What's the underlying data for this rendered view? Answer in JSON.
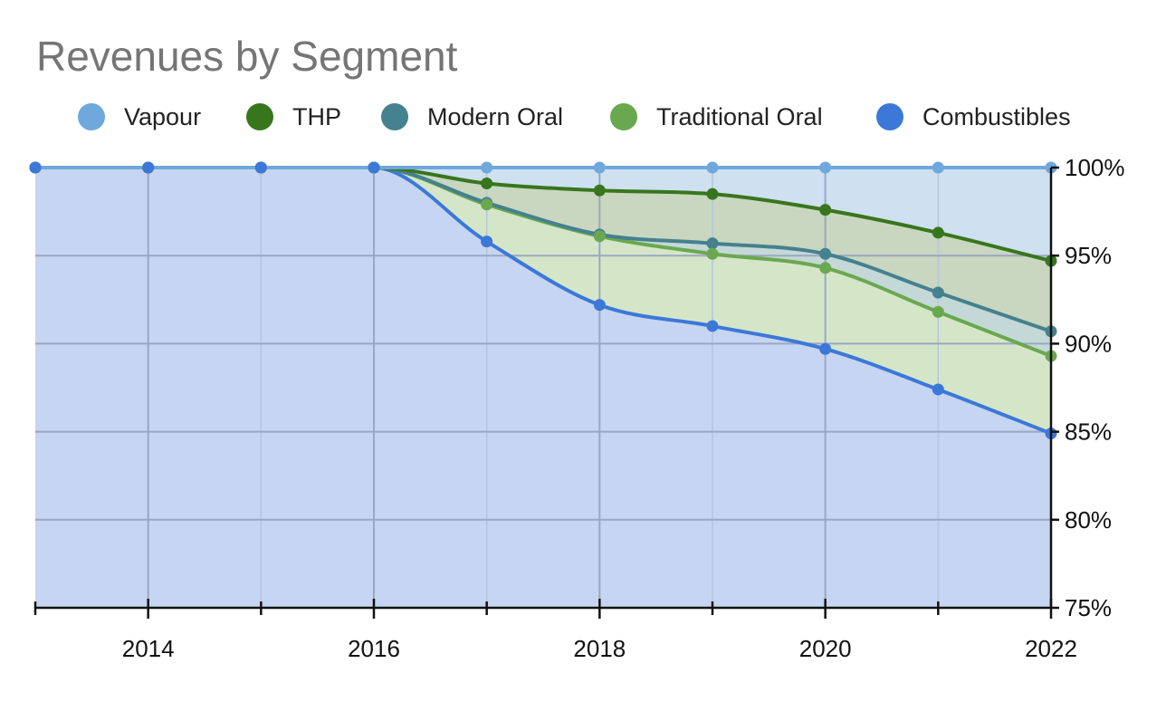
{
  "chart_data": {
    "type": "area",
    "stacked": true,
    "title": "Revenues by Segment",
    "legend_position": "top",
    "x": [
      2013,
      2014,
      2015,
      2016,
      2017,
      2018,
      2019,
      2020,
      2021,
      2022
    ],
    "x_tick_labels": [
      "2014",
      "2016",
      "2018",
      "2020",
      "2022"
    ],
    "x_tick_values": [
      2014,
      2016,
      2018,
      2020,
      2022
    ],
    "y_tick_labels": [
      "100%",
      "95%",
      "90%",
      "85%",
      "80%",
      "75%"
    ],
    "y_tick_values": [
      100,
      95,
      90,
      85,
      80,
      75
    ],
    "ylim": [
      75,
      100
    ],
    "xlim": [
      2013,
      2022
    ],
    "y_axis_side": "right",
    "grid": true,
    "series_note_units": "cumulative share of revenue, percent",
    "series": [
      {
        "name": "Combustibles",
        "color": "#3c78d8",
        "fill": "#c6d5f1",
        "values": [
          100,
          100,
          100,
          100,
          95.8,
          92.2,
          91.0,
          89.7,
          87.4,
          84.9
        ]
      },
      {
        "name": "Traditional Oral",
        "color": "#6aa84f",
        "fill": "#d5e6c8",
        "values": [
          100,
          100,
          100,
          100,
          97.9,
          96.1,
          95.1,
          94.3,
          91.8,
          89.3
        ]
      },
      {
        "name": "Modern Oral",
        "color": "#45818e",
        "fill": "#c4d8d7",
        "values": [
          100,
          100,
          100,
          100,
          98.0,
          96.2,
          95.7,
          95.1,
          92.9,
          90.7
        ]
      },
      {
        "name": "THP",
        "color": "#38761d",
        "fill": "#c9d7c0",
        "values": [
          100,
          100,
          100,
          100,
          99.1,
          98.7,
          98.5,
          97.6,
          96.3,
          94.7
        ]
      },
      {
        "name": "Vapour",
        "color": "#6fa8dc",
        "fill": "#cfe0f1",
        "values": [
          100,
          100,
          100,
          100,
          100,
          100,
          100,
          100,
          100,
          100
        ]
      }
    ],
    "legend_order": [
      "Vapour",
      "THP",
      "Modern Oral",
      "Traditional Oral",
      "Combustibles"
    ]
  }
}
